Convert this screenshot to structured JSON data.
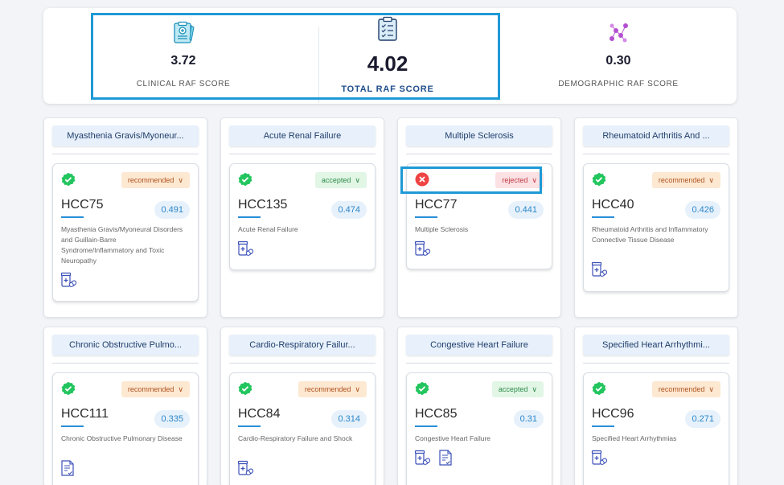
{
  "scores": {
    "clinical": {
      "value": "3.72",
      "label": "CLINICAL RAF SCORE",
      "icon": "clinical-report-icon"
    },
    "total": {
      "value": "4.02",
      "label": "TOTAL RAF SCORE",
      "icon": "clipboard-checklist-icon"
    },
    "demographic": {
      "value": "0.30",
      "label": "DEMOGRAPHIC RAF SCORE",
      "icon": "people-network-icon"
    }
  },
  "colors": {
    "accent": "#1e9ad6",
    "recommended": "#b0531e",
    "accepted": "#2e8b4a",
    "rejected": "#c03a44",
    "check_green": "#22c55e",
    "reject_red": "#ef4444"
  },
  "conditions": [
    {
      "title": "Myasthenia Gravis/Myoneur...",
      "hcc": "HCC75",
      "score": "0.491",
      "status": "recommended",
      "status_label": "recommended",
      "description": "Myasthenia Gravis/Myoneural Disorders and Guillain-Barre Syndrome/Inflammatory and Toxic Neuropathy",
      "doc_icons": [
        "medication-icon"
      ]
    },
    {
      "title": "Acute Renal Failure",
      "hcc": "HCC135",
      "score": "0.474",
      "status": "accepted",
      "status_label": "accepted",
      "description": "Acute Renal Failure",
      "doc_icons": [
        "medication-icon"
      ]
    },
    {
      "title": "Multiple Sclerosis",
      "hcc": "HCC77",
      "score": "0.441",
      "status": "rejected",
      "status_label": "rejected",
      "description": "Multiple Sclerosis",
      "doc_icons": [
        "medication-icon"
      ]
    },
    {
      "title": "Rheumatoid Arthritis And ...",
      "hcc": "HCC40",
      "score": "0.426",
      "status": "recommended",
      "status_label": "recommended",
      "description": "Rheumatoid Arthritis and Inflammatory Connective Tissue Disease",
      "doc_icons": [
        "medication-icon"
      ]
    },
    {
      "title": "Chronic Obstructive Pulmo...",
      "hcc": "HCC111",
      "score": "0.335",
      "status": "recommended",
      "status_label": "recommended",
      "description": "Chronic Obstructive Pulmonary Disease",
      "doc_icons": [
        "document-icon"
      ]
    },
    {
      "title": "Cardio-Respiratory Failur...",
      "hcc": "HCC84",
      "score": "0.314",
      "status": "recommended",
      "status_label": "recommended",
      "description": "Cardio-Respiratory Failure and Shock",
      "doc_icons": [
        "medication-icon"
      ]
    },
    {
      "title": "Congestive Heart Failure",
      "hcc": "HCC85",
      "score": "0.31",
      "status": "accepted",
      "status_label": "accepted",
      "description": "Congestive Heart Failure",
      "doc_icons": [
        "medication-icon",
        "document-icon"
      ]
    },
    {
      "title": "Specified Heart Arrhythmi...",
      "hcc": "HCC96",
      "score": "0.271",
      "status": "recommended",
      "status_label": "recommended",
      "description": "Specified Heart Arrhythmias",
      "doc_icons": [
        "medication-icon"
      ]
    }
  ]
}
